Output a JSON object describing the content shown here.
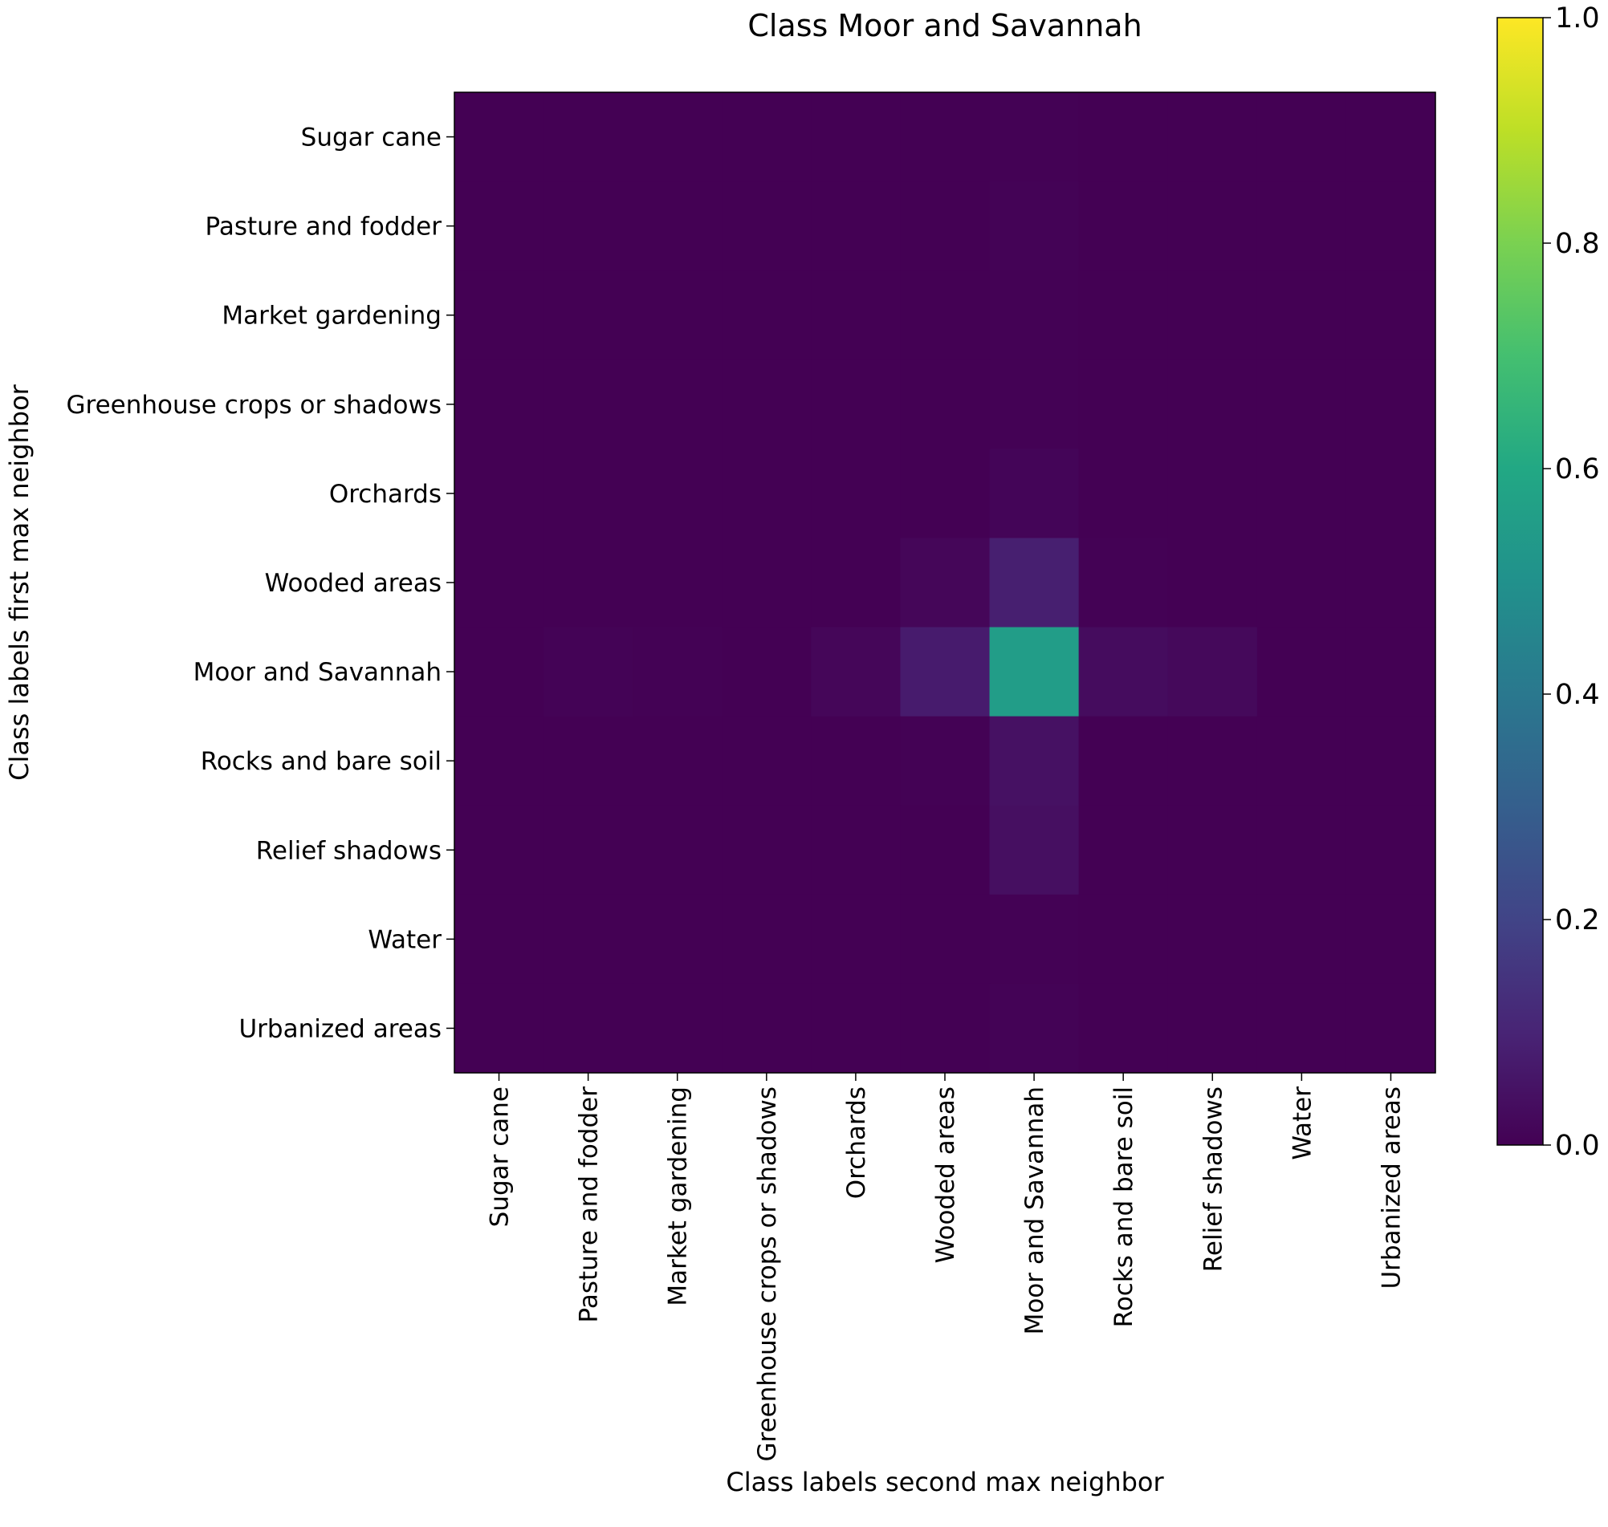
{
  "chart_data": {
    "type": "heatmap",
    "title": "Class Moor and Savannah",
    "xlabel": "Class labels second max neighbor",
    "ylabel": "Class labels first max neighbor",
    "x_categories": [
      "Sugar cane",
      "Pasture and fodder",
      "Market gardening",
      "Greenhouse crops or shadows",
      "Orchards",
      "Wooded areas",
      "Moor and Savannah",
      "Rocks and bare soil",
      "Relief shadows",
      "Water",
      "Urbanized areas"
    ],
    "y_categories": [
      "Sugar cane",
      "Pasture and fodder",
      "Market gardening",
      "Greenhouse crops or shadows",
      "Orchards",
      "Wooded areas",
      "Moor and Savannah",
      "Rocks and bare soil",
      "Relief shadows",
      "Water",
      "Urbanized areas"
    ],
    "values": [
      [
        0.0,
        0.0,
        0.0,
        0.0,
        0.0,
        0.0,
        0.002,
        0.0,
        0.0,
        0.0,
        0.0
      ],
      [
        0.0,
        0.0,
        0.0,
        0.0,
        0.0,
        0.0,
        0.005,
        0.0,
        0.0,
        0.0,
        0.0
      ],
      [
        0.0,
        0.0,
        0.0,
        0.0,
        0.0,
        0.0,
        0.002,
        0.0,
        0.0,
        0.0,
        0.0
      ],
      [
        0.0,
        0.0,
        0.0,
        0.0,
        0.0,
        0.0,
        0.002,
        0.0,
        0.0,
        0.0,
        0.0
      ],
      [
        0.0,
        0.0,
        0.0,
        0.0,
        0.0,
        0.0,
        0.012,
        0.0,
        0.0,
        0.0,
        0.0
      ],
      [
        0.0,
        0.0,
        0.0,
        0.0,
        0.0,
        0.015,
        0.085,
        0.004,
        0.0,
        0.0,
        0.0
      ],
      [
        0.0,
        0.006,
        0.002,
        0.001,
        0.015,
        0.075,
        0.55,
        0.03,
        0.022,
        0.0,
        0.0
      ],
      [
        0.0,
        0.0,
        0.0,
        0.0,
        0.0,
        0.003,
        0.045,
        0.0,
        0.0,
        0.0,
        0.0
      ],
      [
        0.0,
        0.0,
        0.0,
        0.0,
        0.0,
        0.0,
        0.04,
        0.0,
        0.0,
        0.0,
        0.0
      ],
      [
        0.0,
        0.0,
        0.0,
        0.0,
        0.0,
        0.0,
        0.002,
        0.0,
        0.0,
        0.0,
        0.0
      ],
      [
        0.0,
        0.0,
        0.0,
        0.0,
        0.0,
        0.0,
        0.006,
        0.0,
        0.0,
        0.0,
        0.0
      ]
    ],
    "colormap": "viridis",
    "vmin": 0.0,
    "vmax": 1.0,
    "colorbar_ticks": [
      "0.0",
      "0.2",
      "0.4",
      "0.6",
      "0.8",
      "1.0"
    ],
    "grid": false
  }
}
